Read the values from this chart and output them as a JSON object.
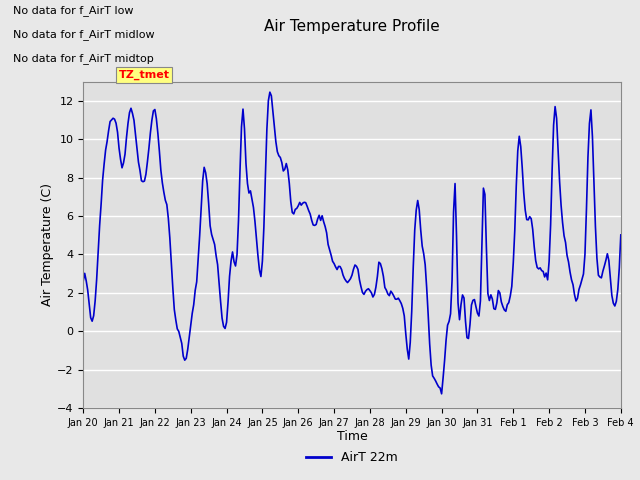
{
  "title": "Air Temperature Profile",
  "xlabel": "Time",
  "ylabel": "Air Temperature (C)",
  "ylim": [
    -4,
    13
  ],
  "yticks": [
    -4,
    -2,
    0,
    2,
    4,
    6,
    8,
    10,
    12
  ],
  "line_color": "#0000CC",
  "line_width": 1.2,
  "bg_color": "#E8E8E8",
  "plot_bg_color": "#E0E0E0",
  "grid_color": "white",
  "legend_label": "AirT 22m",
  "text_annotations": [
    "No data for f_AirT low",
    "No data for f_AirT midlow",
    "No data for f_AirT midtop"
  ],
  "legend_box_text": "TZ_tmet",
  "xtick_labels": [
    "Jan 20",
    "Jan 21",
    "Jan 22",
    "Jan 23",
    "Jan 24",
    "Jan 25",
    "Jan 26",
    "Jan 27",
    "Jan 28",
    "Jan 29",
    "Jan 30",
    "Jan 31",
    "Feb 1",
    "Feb 2",
    "Feb 3",
    "Feb 4"
  ]
}
